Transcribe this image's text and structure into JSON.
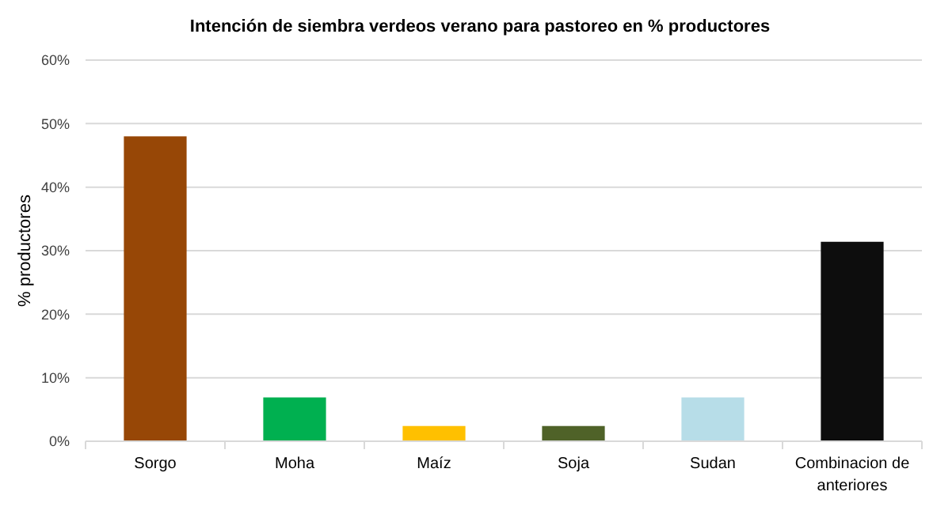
{
  "chart_data": {
    "type": "bar",
    "title": "Intención de siembra verdeos verano para pastoreo en % productores",
    "ylabel": "% productores",
    "categories": [
      "Sorgo",
      "Moha",
      "Maíz",
      "Soja",
      "Sudan",
      "Combinacion de anteriores"
    ],
    "values": [
      48,
      6.9,
      2.4,
      2.4,
      6.9,
      31.4
    ],
    "colors": [
      "#974706",
      "#00b050",
      "#ffc000",
      "#4f6228",
      "#b7dde8",
      "#0d0d0d"
    ],
    "ylim": [
      0,
      60
    ],
    "yticks": [
      {
        "value": 0,
        "label": "0%"
      },
      {
        "value": 10,
        "label": "10%"
      },
      {
        "value": 20,
        "label": "20%"
      },
      {
        "value": 30,
        "label": "30%"
      },
      {
        "value": 40,
        "label": "40%"
      },
      {
        "value": 50,
        "label": "50%"
      },
      {
        "value": 60,
        "label": "60%"
      }
    ],
    "grid": "y"
  }
}
